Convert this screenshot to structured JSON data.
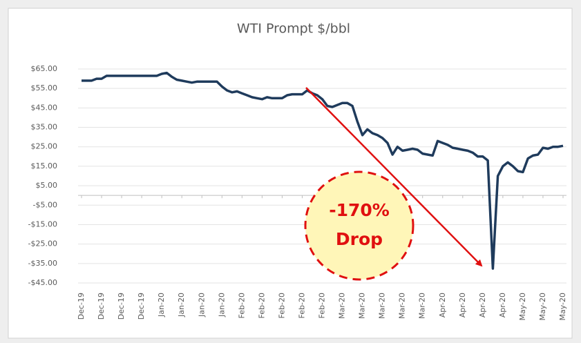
{
  "chart_data": {
    "type": "line",
    "title": "WTI Prompt $/bbl",
    "annotations": [
      "-170%",
      "Drop"
    ],
    "categories": [
      "Dec-19",
      null,
      null,
      null,
      "Dec-19",
      null,
      null,
      null,
      "Dec-19",
      null,
      null,
      null,
      "Dec-19",
      null,
      null,
      null,
      "Jan-20",
      null,
      null,
      null,
      "Jan-20",
      null,
      null,
      null,
      "Jan-20",
      null,
      null,
      null,
      "Jan-20",
      null,
      null,
      null,
      "Feb-20",
      null,
      null,
      null,
      "Feb-20",
      null,
      null,
      null,
      "Feb-20",
      null,
      null,
      null,
      "Feb-20",
      null,
      null,
      null,
      "Feb-20",
      null,
      null,
      null,
      "Mar-20",
      null,
      null,
      null,
      "Mar-20",
      null,
      null,
      null,
      "Mar-20",
      null,
      null,
      null,
      "Mar-20",
      null,
      null,
      null,
      "Mar-20",
      null,
      null,
      null,
      "Apr-20",
      null,
      null,
      null,
      "Apr-20",
      null,
      null,
      null,
      "Apr-20",
      null,
      null,
      null,
      "Apr-20",
      null,
      null,
      null,
      "May-20",
      null,
      null,
      null,
      "May-20",
      null,
      null,
      null,
      "May-20"
    ],
    "series": [
      {
        "color": "#1f3b5c",
        "values": [
          59,
          59,
          59,
          60,
          60,
          61.5,
          61.5,
          61.5,
          61.5,
          61.5,
          61.5,
          61.5,
          61.5,
          61.5,
          61.5,
          61.5,
          62.5,
          63,
          61,
          59.5,
          59,
          58.5,
          58,
          58.5,
          58.5,
          58.5,
          58.5,
          58.5,
          56,
          54,
          53,
          53.5,
          52.5,
          51.5,
          50.5,
          50,
          49.5,
          50.5,
          50,
          50,
          50,
          51.5,
          52,
          52,
          52,
          54,
          52.5,
          51.5,
          49.5,
          46,
          45.5,
          46.5,
          47.5,
          47.5,
          46,
          38,
          31,
          34,
          32,
          31,
          29.5,
          27,
          21,
          25,
          23,
          23.5,
          24,
          23.5,
          21.5,
          21,
          20.5,
          28,
          27,
          26,
          24.5,
          24,
          23.5,
          23,
          22,
          20,
          20,
          18,
          -37.6,
          10,
          15,
          17,
          15,
          12.5,
          12,
          19,
          20.5,
          21,
          24.5,
          24,
          25,
          25,
          25.5
        ]
      }
    ],
    "ylim": [
      -45,
      65
    ],
    "yticks": [
      {
        "value": 65,
        "label": "$65.00"
      },
      {
        "value": 55,
        "label": "$55.00"
      },
      {
        "value": 45,
        "label": "$45.00"
      },
      {
        "value": 35,
        "label": "$35.00"
      },
      {
        "value": 25,
        "label": "$25.00"
      },
      {
        "value": 15,
        "label": "$15.00"
      },
      {
        "value": 5,
        "label": "$5.00"
      },
      {
        "value": -5,
        "label": "-$5.00"
      },
      {
        "value": -15,
        "label": "-$15.00"
      },
      {
        "value": -25,
        "label": "-$25.00"
      },
      {
        "value": -35,
        "label": "-$35.00"
      },
      {
        "value": -45,
        "label": "-$45.00"
      }
    ],
    "grid": true
  }
}
